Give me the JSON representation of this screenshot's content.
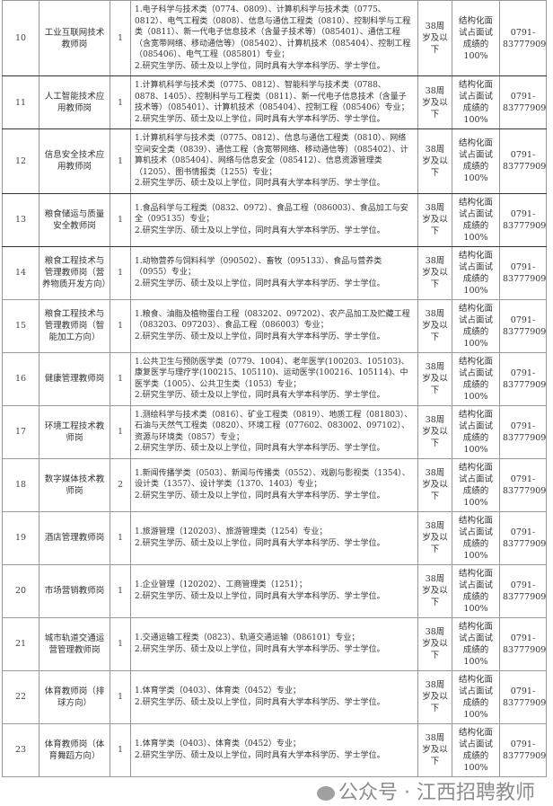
{
  "rows": [
    {
      "no": "10",
      "name": "工业互联网技术教师岗",
      "count": "1",
      "req1": "1.电子科学与技术类（0774、0809）、计算机科学与技术类（0775、0812）、电气工程类（0808）、信息与通信工程类（0810）、控制科学与工程类（0811）、新一代电子信息技术（含量子技术等）（085401）、通信工程（含宽带网络、移动通信等）（085402）、计算机技术（085404）、控制工程（085406）、电气工程（085801）专业；",
      "req2": "2.研究生学历、硕士及以上学位，同时具有大学本科学历、学士学位。",
      "age": "38周岁及以下",
      "method": "结构化面试占面试成绩的100%",
      "phone": "0791-83777909"
    },
    {
      "no": "11",
      "name": "人工智能技术应用教师岗",
      "count": "1",
      "req1": "1.计算机科学与技术类（0775、0812）、智能科学与技术类（0788、0878、1405）、控制科学与工程类（0811）、新一代电子信息技术（含量子技术等）（085401）、计算机技术（085404）、控制工程（085406）专业；",
      "req2": "2.研究生学历、硕士及以上学位，同时具有大学本科学历、学士学位。",
      "age": "38周岁及以下",
      "method": "结构化面试占面试成绩的100%",
      "phone": "0791-83777909"
    },
    {
      "no": "12",
      "name": "信息安全技术应用教师岗",
      "count": "1",
      "req1": "1.计算机科学与技术类（0775、0812）、信息与通信工程类（0810）、网络空间安全类（0839）、通信工程（含宽带网络、移动通信等）（085402）、计算机技术（085404）、网络与信息安全（085412）、信息资源管理类（1205）、图书情报类（1255）专业；",
      "req2": "2.研究生学历、硕士及以上学位，同时具有大学本科学历、学士学位。",
      "age": "38周岁及以下",
      "method": "结构化面试占面试成绩的100%",
      "phone": "0791-83777909"
    },
    {
      "no": "13",
      "name": "粮食储运与质量安全教师岗",
      "count": "1",
      "req1": "1.食品科学与工程类（0832、0972）、食品工程（086003）、食品加工与安全（095135）专业；",
      "req2": "2.研究生学历、硕士及以上学位，同时具有大学本科学历、学士学位。",
      "age": "38周岁及以下",
      "method": "结构化面试占面试成绩的100%",
      "phone": "0791-83777909"
    },
    {
      "no": "14",
      "name": "粮食工程技术与管理教师岗（营养物质开发方向）",
      "count": "1",
      "req1": "1.动物营养与饲料科学（090502）、畜牧（095133）、食品与营养类（0955）专业；",
      "req2": "2.研究生学历、硕士及以上学位，同时具有大学本科学历、学士学位。",
      "age": "38周岁及以下",
      "method": "结构化面试占面试成绩的100%",
      "phone": "0791-83777909"
    },
    {
      "no": "15",
      "name": "粮食工程技术与管理教师岗（智能加工方向）",
      "count": "1",
      "req1": "1.粮食、油脂及植物蛋白工程（083202、097202）、农产品加工及贮藏工程（083203、097203）、食品工程（086003）专业；",
      "req2": "2.研究生学历、硕士及以上学位，同时具有大学本科学历、学士学位。",
      "age": "38周岁及以下",
      "method": "结构化面试占面试成绩的100%",
      "phone": "0791-83777909"
    },
    {
      "no": "16",
      "name": "健康管理教师岗",
      "count": "1",
      "req1": "1.公共卫生与预防医学类（0779、1004）、老年医学(100203、105103)、康复医学与理疗学(100215、105110)、运动医学(100216、105114)、中医学类（1005）、公共卫生类（1053）专业；",
      "req2": "2.研究生学历、硕士及以上学位，同时具有大学本科学历、学士学位。",
      "age": "38周岁及以下",
      "method": "结构化面试占面试成绩的100%",
      "phone": "0791-83777909"
    },
    {
      "no": "17",
      "name": "环境工程技术教师岗",
      "count": "1",
      "req1": "1.测绘科学与技术类（0816）、矿业工程类（0819）、地质工程（081803）、石油与天然气工程类（0820）、环境工程（077602、083002、097102）、资源与环境类（0857）专业；",
      "req2": "2.研究生学历、硕士及以上学位，同时具有大学本科学历、学士学位。",
      "age": "38周岁及以下",
      "method": "结构化面试占面试成绩的100%",
      "phone": "0791-83777909"
    },
    {
      "no": "18",
      "name": "数字媒体技术教师岗",
      "count": "2",
      "req1": "1.新闻传播学类（0503）、新闻与传播类（0552）、戏剧与影视类（1354）、设计类（1357）、设计学类（1370、1403）专业；",
      "req2": "2.研究生学历、硕士及以上学位，同时具有大学本科学历、学士学位。",
      "age": "38周岁及以下",
      "method": "结构化面试占面试成绩的100%",
      "phone": "0791-83777909"
    },
    {
      "no": "19",
      "name": "酒店管理教师岗",
      "count": "1",
      "req1": "1.旅游管理（120203）、旅游管理类（1254）专业；",
      "req2": "2.研究生学历、硕士及以上学位，同时具有大学本科学历、学士学位。",
      "age": "38周岁及以下",
      "method": "结构化面试占面试成绩的100%",
      "phone": "0791-83777909"
    },
    {
      "no": "20",
      "name": "市场营销教师岗",
      "count": "1",
      "req1": "1.企业管理（120202）、工商管理类（1251）；",
      "req2": "2.研究生学历、硕士及以上学位，同时具有大学本科学历、学士学位。",
      "age": "38周岁及以下",
      "method": "结构化面试占面试成绩的100%",
      "phone": "0791-83777909"
    },
    {
      "no": "21",
      "name": "城市轨道交通运营管理教师岗",
      "count": "1",
      "req1": "1.交通运输工程类（0823）、轨道交通运输（086101）专业；",
      "req2": "2.研究生学历、硕士及以上学位，同时具有大学本科学历、学士学位。",
      "age": "38周岁及以下",
      "method": "结构化面试占面试成绩的100%",
      "phone": "0791-83777909"
    },
    {
      "no": "22",
      "name": "体育教师岗（排球方向）",
      "count": "1",
      "req1": "1.体育学类（0403）、体育类（0452）专业；",
      "req2": "2.研究生学历、硕士及以上学位，同时具有大学本科学历、学士学位。",
      "age": "38周岁及以下",
      "method": "结构化面试占面试成绩的100%",
      "phone": "0791-83777909"
    },
    {
      "no": "23",
      "name": "体育教师岗（体育舞蹈方向）",
      "count": "1",
      "req1": "1.体育学类（0403）、体育类（0452）专业；",
      "req2": "2.研究生学历、硕士及以上学位，同时具有大学本科学历、学士学位。",
      "age": "38周岁及以下",
      "method": "结构化面试占面试成绩的100%",
      "phone": "0791-83777909"
    }
  ],
  "watermark": "公众号 · 江西招聘教师"
}
